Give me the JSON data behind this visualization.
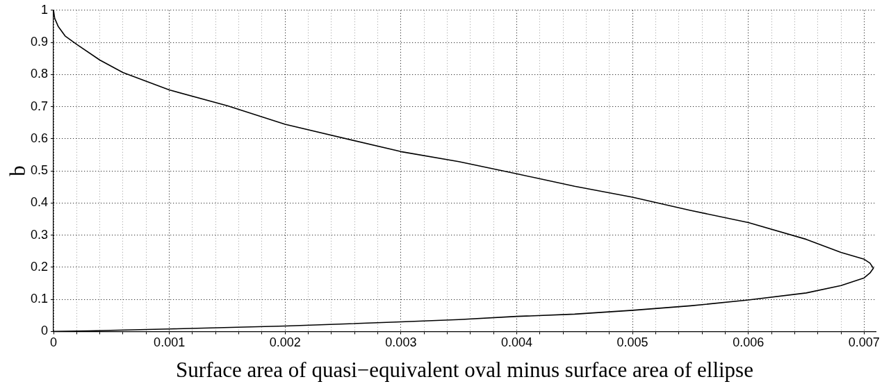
{
  "chart_data": {
    "type": "line",
    "xlabel": "Surface area of quasi−equivalent oval minus surface area of ellipse",
    "ylabel": "b",
    "series": [
      {
        "color": "#000000",
        "x": [
          0,
          1e-05,
          4e-05,
          0.0001,
          0.0002,
          0.0004,
          0.0006,
          0.001,
          0.0015,
          0.002,
          0.003,
          0.0035,
          0.004,
          0.0045,
          0.005,
          0.0055,
          0.006,
          0.0065,
          0.0068,
          0.007,
          0.00705,
          0.00708,
          0.00705,
          0.007,
          0.0068,
          0.0065,
          0.006,
          0.0055,
          0.005,
          0.0045,
          0.004,
          0.0035,
          0.003,
          0.002,
          0.001,
          0.0003,
          0
        ],
        "values": [
          1,
          0.975,
          0.95,
          0.92,
          0.894,
          0.845,
          0.806,
          0.752,
          0.703,
          0.645,
          0.56,
          0.529,
          0.491,
          0.452,
          0.418,
          0.377,
          0.339,
          0.287,
          0.246,
          0.225,
          0.213,
          0.197,
          0.182,
          0.167,
          0.143,
          0.12,
          0.098,
          0.08,
          0.066,
          0.054,
          0.047,
          0.037,
          0.03,
          0.017,
          0.008,
          0.002,
          0
        ]
      }
    ],
    "xlim": [
      0,
      0.0071
    ],
    "xticks": [
      0,
      {
        "value": 0.0002,
        "label": null
      },
      {
        "value": 0.0004,
        "label": null
      },
      {
        "value": 0.0006,
        "label": null
      },
      {
        "value": 0.0008,
        "label": null
      },
      0.001,
      {
        "value": 0.0012,
        "label": null
      },
      {
        "value": 0.0014,
        "label": null
      },
      {
        "value": 0.0016,
        "label": null
      },
      {
        "value": 0.0018,
        "label": null
      },
      0.002,
      {
        "value": 0.0022,
        "label": null
      },
      {
        "value": 0.0024,
        "label": null
      },
      {
        "value": 0.0026,
        "label": null
      },
      {
        "value": 0.0028,
        "label": null
      },
      0.003,
      {
        "value": 0.0032,
        "label": null
      },
      {
        "value": 0.0034,
        "label": null
      },
      {
        "value": 0.0036,
        "label": null
      },
      {
        "value": 0.0038,
        "label": null
      },
      0.004,
      {
        "value": 0.0042,
        "label": null
      },
      {
        "value": 0.0044,
        "label": null
      },
      {
        "value": 0.0046,
        "label": null
      },
      {
        "value": 0.0048,
        "label": null
      },
      0.005,
      {
        "value": 0.0052,
        "label": null
      },
      {
        "value": 0.0054,
        "label": null
      },
      {
        "value": 0.0056,
        "label": null
      },
      {
        "value": 0.0058,
        "label": null
      },
      0.006,
      {
        "value": 0.0062,
        "label": null
      },
      {
        "value": 0.0064,
        "label": null
      },
      {
        "value": 0.0066,
        "label": null
      },
      {
        "value": 0.0068,
        "label": null
      },
      0.007
    ],
    "ylim": [
      0,
      1
    ],
    "yticks": [
      0,
      0.1,
      0.2,
      0.3,
      0.4,
      0.5,
      0.6,
      0.7,
      0.8,
      0.9,
      1
    ],
    "grid": true,
    "marker": "none",
    "line_style": "solid",
    "legend": false
  }
}
